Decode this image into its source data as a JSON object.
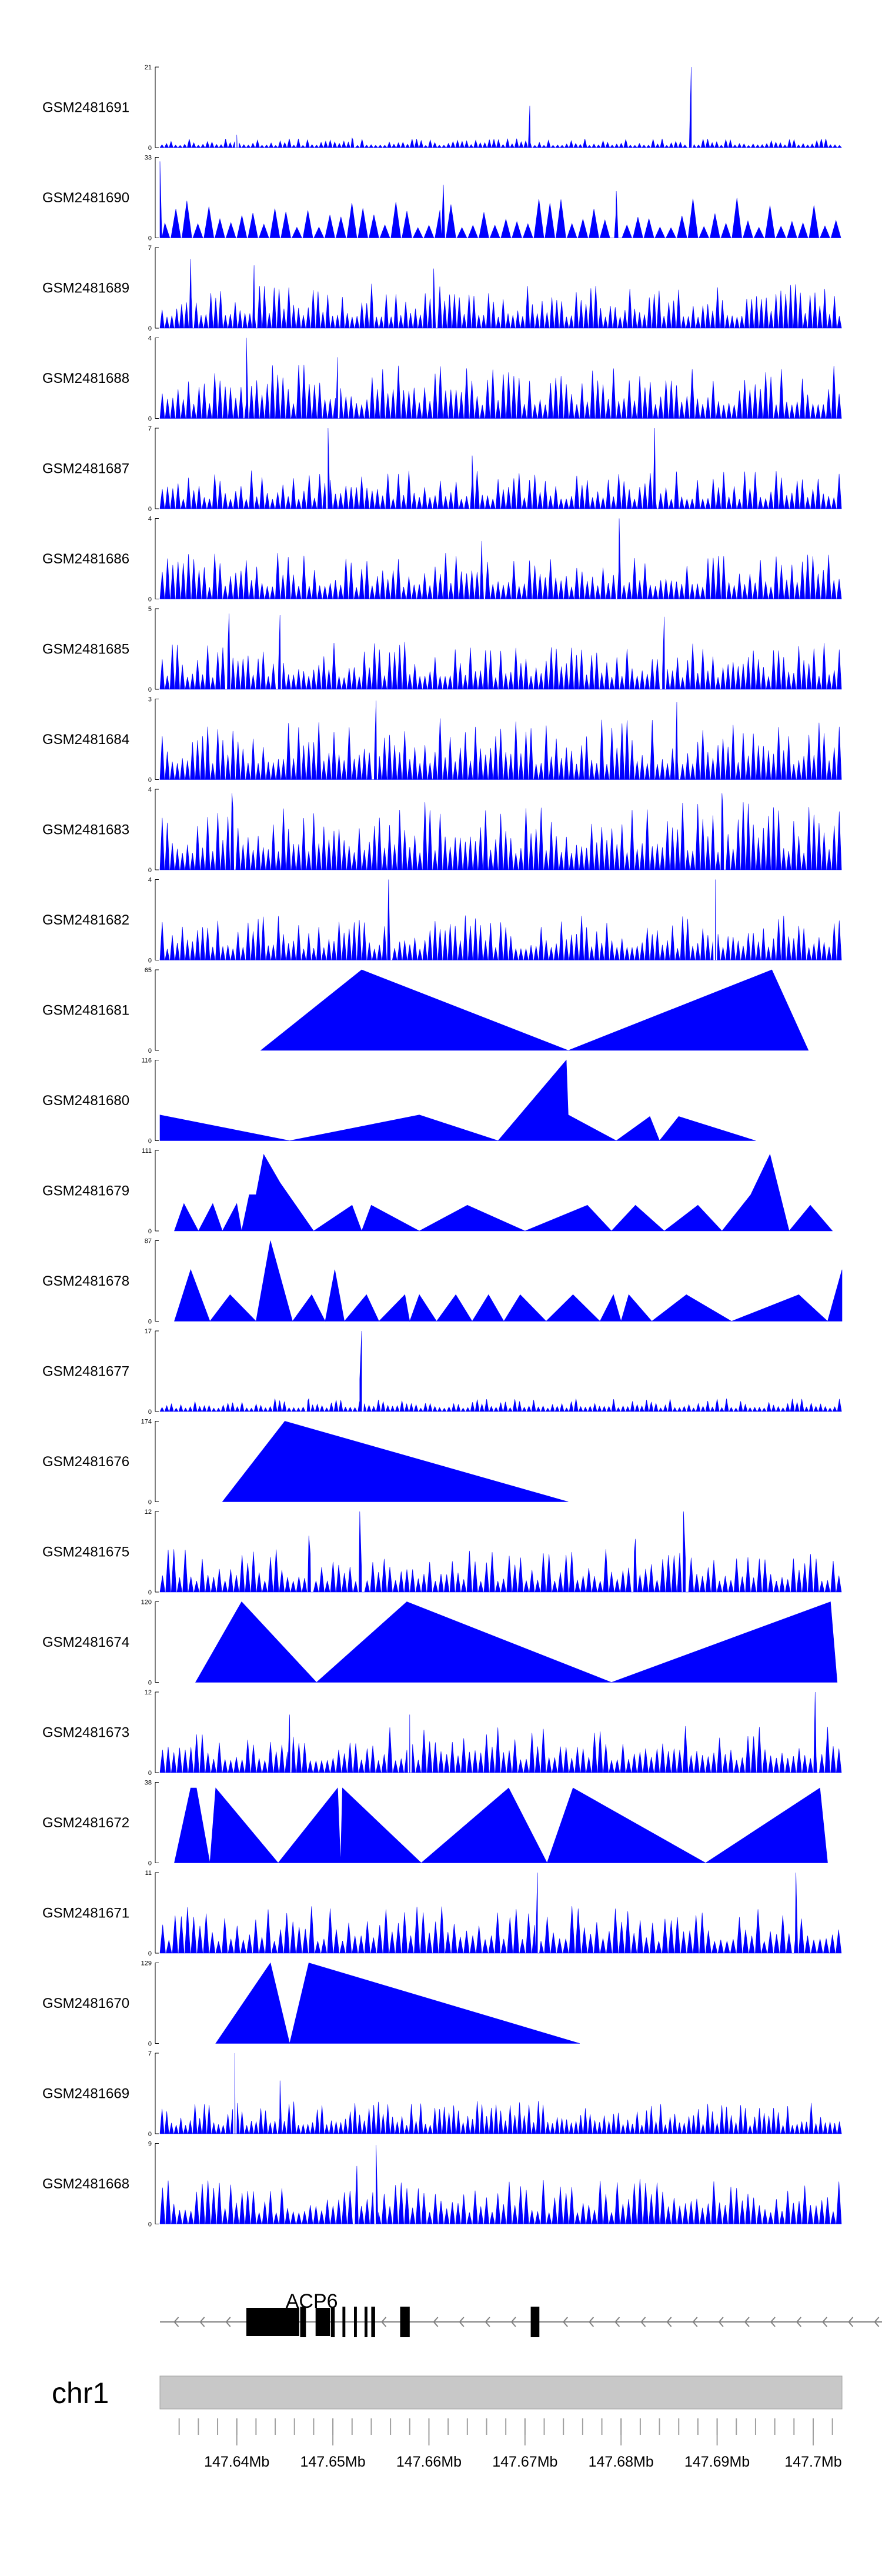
{
  "chart_data": {
    "type": "area",
    "genome_axis": {
      "chromosome": "chr1",
      "range_mb": [
        147.632,
        147.703
      ],
      "major_ticks_mb": [
        147.64,
        147.65,
        147.66,
        147.67,
        147.68,
        147.69,
        147.7
      ],
      "major_tick_labels": [
        "147.64Mb",
        "147.65Mb",
        "147.66Mb",
        "147.67Mb",
        "147.68Mb",
        "147.69Mb",
        "147.7Mb"
      ],
      "minor_tick_step_mb": 0.002
    },
    "gene": {
      "name": "ACP6",
      "strand": "-",
      "start_mb": 147.632,
      "end_mb": 147.7075,
      "exons_mb": [
        [
          147.641,
          147.6465
        ],
        [
          147.6466,
          147.6472
        ],
        [
          147.6482,
          147.6497
        ],
        [
          147.6498,
          147.6502
        ],
        [
          147.651,
          147.6513
        ],
        [
          147.6522,
          147.6525
        ],
        [
          147.6533,
          147.6536
        ],
        [
          147.654,
          147.6544
        ],
        [
          147.657,
          147.658
        ],
        [
          147.6706,
          147.6715
        ]
      ]
    },
    "colors": {
      "signal": "#0000ff",
      "axis_bar": "#c8c8c8"
    },
    "tracks": [
      {
        "name": "GSM2481691",
        "ymax": "21",
        "ymin": "0",
        "kind": "dense",
        "density": 150,
        "base": 0.08,
        "spikes": [
          {
            "x": 147.6705,
            "v": 0.52
          },
          {
            "x": 147.6873,
            "v": 1.0
          },
          {
            "x": 147.652,
            "v": 0.12
          },
          {
            "x": 147.64,
            "v": 0.16
          }
        ]
      },
      {
        "name": "GSM2481690",
        "ymax": "33",
        "ymin": "0",
        "kind": "dense",
        "density": 62,
        "base": 0.36,
        "spikes": [
          {
            "x": 147.632,
            "v": 0.95
          },
          {
            "x": 147.6615,
            "v": 0.66
          },
          {
            "x": 147.6795,
            "v": 0.58
          }
        ]
      },
      {
        "name": "GSM2481689",
        "ymax": "7",
        "ymin": "0",
        "kind": "dense",
        "density": 140,
        "base": 0.4,
        "spikes": [
          {
            "x": 147.6352,
            "v": 0.86
          },
          {
            "x": 147.6418,
            "v": 0.78
          },
          {
            "x": 147.6605,
            "v": 0.74
          }
        ]
      },
      {
        "name": "GSM2481688",
        "ymax": "4",
        "ymin": "0",
        "kind": "dense",
        "density": 130,
        "base": 0.48,
        "spikes": [
          {
            "x": 147.641,
            "v": 1.0
          },
          {
            "x": 147.6505,
            "v": 0.76
          }
        ]
      },
      {
        "name": "GSM2481687",
        "ymax": "7",
        "ymin": "0",
        "kind": "dense",
        "density": 130,
        "base": 0.34,
        "spikes": [
          {
            "x": 147.6495,
            "v": 1.0
          },
          {
            "x": 147.6835,
            "v": 1.0
          },
          {
            "x": 147.6645,
            "v": 0.66
          }
        ]
      },
      {
        "name": "GSM2481686",
        "ymax": "4",
        "ymin": "0",
        "kind": "dense",
        "density": 130,
        "base": 0.42,
        "spikes": [
          {
            "x": 147.6798,
            "v": 1.0
          },
          {
            "x": 147.6655,
            "v": 0.72
          }
        ]
      },
      {
        "name": "GSM2481685",
        "ymax": "5",
        "ymin": "0",
        "kind": "dense",
        "density": 135,
        "base": 0.42,
        "spikes": [
          {
            "x": 147.6392,
            "v": 0.94
          },
          {
            "x": 147.6445,
            "v": 0.92
          },
          {
            "x": 147.6845,
            "v": 0.9
          }
        ]
      },
      {
        "name": "GSM2481684",
        "ymax": "3",
        "ymin": "0",
        "kind": "dense",
        "density": 135,
        "base": 0.55,
        "spikes": [
          {
            "x": 147.6545,
            "v": 0.98
          },
          {
            "x": 147.6858,
            "v": 0.96
          }
        ]
      },
      {
        "name": "GSM2481683",
        "ymax": "4",
        "ymin": "0",
        "kind": "dense",
        "density": 135,
        "base": 0.6,
        "spikes": [
          {
            "x": 147.6395,
            "v": 0.95
          },
          {
            "x": 147.6905,
            "v": 0.95
          }
        ]
      },
      {
        "name": "GSM2481682",
        "ymax": "4",
        "ymin": "0",
        "kind": "dense",
        "density": 135,
        "base": 0.4,
        "spikes": [
          {
            "x": 147.6558,
            "v": 1.0
          },
          {
            "x": 147.6898,
            "v": 1.0
          }
        ]
      },
      {
        "name": "GSM2481681",
        "ymax": "65",
        "ymin": "0",
        "kind": "triangles",
        "points": [
          [
            147.6425,
            0.0
          ],
          [
            147.653,
            1.0
          ],
          [
            147.6745,
            0.0
          ],
          [
            147.6957,
            1.0
          ],
          [
            147.6995,
            0.0
          ]
        ]
      },
      {
        "name": "GSM2481680",
        "ymax": "116",
        "ymin": "0",
        "kind": "triangles",
        "points": [
          [
            147.632,
            0.32
          ],
          [
            147.6455,
            0.0
          ],
          [
            147.659,
            0.32
          ],
          [
            147.6672,
            0.0
          ],
          [
            147.6743,
            1.0
          ],
          [
            147.6745,
            0.32
          ],
          [
            147.6795,
            0.0
          ],
          [
            147.683,
            0.3
          ],
          [
            147.684,
            0.0
          ],
          [
            147.686,
            0.3
          ],
          [
            147.694,
            0.0
          ]
        ]
      },
      {
        "name": "GSM2481679",
        "ymax": "111",
        "ymin": "0",
        "kind": "triangles",
        "points": [
          [
            147.6335,
            0.0
          ],
          [
            147.6345,
            0.34
          ],
          [
            147.636,
            0.0
          ],
          [
            147.6375,
            0.34
          ],
          [
            147.6385,
            0.0
          ],
          [
            147.64,
            0.34
          ],
          [
            147.6405,
            0.0
          ],
          [
            147.6413,
            0.45
          ],
          [
            147.642,
            0.45
          ],
          [
            147.6428,
            0.95
          ],
          [
            147.6445,
            0.6
          ],
          [
            147.648,
            0.0
          ],
          [
            147.652,
            0.32
          ],
          [
            147.653,
            0.0
          ],
          [
            147.654,
            0.32
          ],
          [
            147.659,
            0.0
          ],
          [
            147.664,
            0.32
          ],
          [
            147.67,
            0.0
          ],
          [
            147.6765,
            0.32
          ],
          [
            147.679,
            0.0
          ],
          [
            147.6815,
            0.32
          ],
          [
            147.6845,
            0.0
          ],
          [
            147.688,
            0.32
          ],
          [
            147.6905,
            0.0
          ],
          [
            147.6935,
            0.45
          ],
          [
            147.6955,
            0.95
          ],
          [
            147.6975,
            0.0
          ],
          [
            147.6997,
            0.32
          ],
          [
            147.702,
            0.0
          ]
        ]
      },
      {
        "name": "GSM2481678",
        "ymax": "87",
        "ymin": "0",
        "kind": "triangles",
        "points": [
          [
            147.6335,
            0.0
          ],
          [
            147.6352,
            0.64
          ],
          [
            147.6372,
            0.0
          ],
          [
            147.6393,
            0.33
          ],
          [
            147.642,
            0.0
          ],
          [
            147.6435,
            1.0
          ],
          [
            147.6458,
            0.0
          ],
          [
            147.6478,
            0.33
          ],
          [
            147.6492,
            0.0
          ],
          [
            147.6502,
            0.64
          ],
          [
            147.6512,
            0.0
          ],
          [
            147.6535,
            0.33
          ],
          [
            147.6548,
            0.0
          ],
          [
            147.6575,
            0.33
          ],
          [
            147.658,
            0.0
          ],
          [
            147.659,
            0.33
          ],
          [
            147.6608,
            0.0
          ],
          [
            147.6628,
            0.33
          ],
          [
            147.6645,
            0.0
          ],
          [
            147.6662,
            0.33
          ],
          [
            147.6678,
            0.0
          ],
          [
            147.6695,
            0.33
          ],
          [
            147.6722,
            0.0
          ],
          [
            147.675,
            0.33
          ],
          [
            147.6778,
            0.0
          ],
          [
            147.6792,
            0.33
          ],
          [
            147.68,
            0.0
          ],
          [
            147.6808,
            0.33
          ],
          [
            147.6832,
            0.0
          ],
          [
            147.6868,
            0.33
          ],
          [
            147.6915,
            0.0
          ],
          [
            147.6985,
            0.33
          ],
          [
            147.7015,
            0.0
          ],
          [
            147.7032,
            0.64
          ]
        ]
      },
      {
        "name": "GSM2481677",
        "ymax": "17",
        "ymin": "0",
        "kind": "dense",
        "density": 145,
        "base": 0.12,
        "spikes": [
          {
            "x": 147.653,
            "v": 1.0
          },
          {
            "x": 147.6528,
            "v": 0.4
          },
          {
            "x": 147.6475,
            "v": 0.16
          }
        ]
      },
      {
        "name": "GSM2481676",
        "ymax": "174",
        "ymin": "0",
        "kind": "triangles",
        "points": [
          [
            147.6385,
            0.0
          ],
          [
            147.645,
            1.0
          ],
          [
            147.6745,
            0.0
          ]
        ]
      },
      {
        "name": "GSM2481675",
        "ymax": "12",
        "ymin": "0",
        "kind": "dense",
        "density": 120,
        "base": 0.38,
        "spikes": [
          {
            "x": 147.6528,
            "v": 1.0
          },
          {
            "x": 147.6865,
            "v": 1.0
          },
          {
            "x": 147.6815,
            "v": 0.66
          },
          {
            "x": 147.6475,
            "v": 0.7
          }
        ]
      },
      {
        "name": "GSM2481674",
        "ymax": "120",
        "ymin": "0",
        "kind": "triangles",
        "points": [
          [
            147.6357,
            0.0
          ],
          [
            147.6405,
            1.0
          ],
          [
            147.6483,
            0.0
          ],
          [
            147.6577,
            1.0
          ],
          [
            147.679,
            0.0
          ],
          [
            147.7018,
            1.0
          ],
          [
            147.7025,
            0.0
          ]
        ]
      },
      {
        "name": "GSM2481673",
        "ymax": "12",
        "ymin": "0",
        "kind": "dense",
        "density": 120,
        "base": 0.42,
        "spikes": [
          {
            "x": 147.7002,
            "v": 1.0
          },
          {
            "x": 147.6455,
            "v": 0.72
          },
          {
            "x": 147.658,
            "v": 0.72
          }
        ]
      },
      {
        "name": "GSM2481672",
        "ymax": "38",
        "ymin": "0",
        "kind": "triangles",
        "points": [
          [
            147.6335,
            0.0
          ],
          [
            147.6352,
            0.93
          ],
          [
            147.6358,
            0.93
          ],
          [
            147.6372,
            0.0
          ],
          [
            147.6378,
            0.93
          ],
          [
            147.6443,
            0.0
          ],
          [
            147.6505,
            0.93
          ],
          [
            147.6508,
            0.0
          ],
          [
            147.651,
            0.93
          ],
          [
            147.6592,
            0.0
          ],
          [
            147.6683,
            0.93
          ],
          [
            147.6723,
            0.0
          ],
          [
            147.675,
            0.93
          ],
          [
            147.6888,
            0.0
          ],
          [
            147.7007,
            0.93
          ],
          [
            147.7015,
            0.0
          ]
        ]
      },
      {
        "name": "GSM2481671",
        "ymax": "11",
        "ymin": "0",
        "kind": "dense",
        "density": 110,
        "base": 0.42,
        "spikes": [
          {
            "x": 147.6713,
            "v": 1.0
          },
          {
            "x": 147.6982,
            "v": 1.0
          }
        ]
      },
      {
        "name": "GSM2481670",
        "ymax": "129",
        "ymin": "0",
        "kind": "triangles",
        "points": [
          [
            147.6378,
            0.0
          ],
          [
            147.6435,
            1.0
          ],
          [
            147.6455,
            0.0
          ],
          [
            147.6475,
            1.0
          ],
          [
            147.6757,
            0.0
          ]
        ]
      },
      {
        "name": "GSM2481669",
        "ymax": "7",
        "ymin": "0",
        "kind": "dense",
        "density": 145,
        "base": 0.3,
        "spikes": [
          {
            "x": 147.6398,
            "v": 1.0
          },
          {
            "x": 147.6445,
            "v": 0.66
          }
        ]
      },
      {
        "name": "GSM2481668",
        "ymax": "9",
        "ymin": "0",
        "kind": "dense",
        "density": 120,
        "base": 0.4,
        "spikes": [
          {
            "x": 147.6545,
            "v": 0.98
          },
          {
            "x": 147.6525,
            "v": 0.72
          }
        ]
      }
    ]
  }
}
